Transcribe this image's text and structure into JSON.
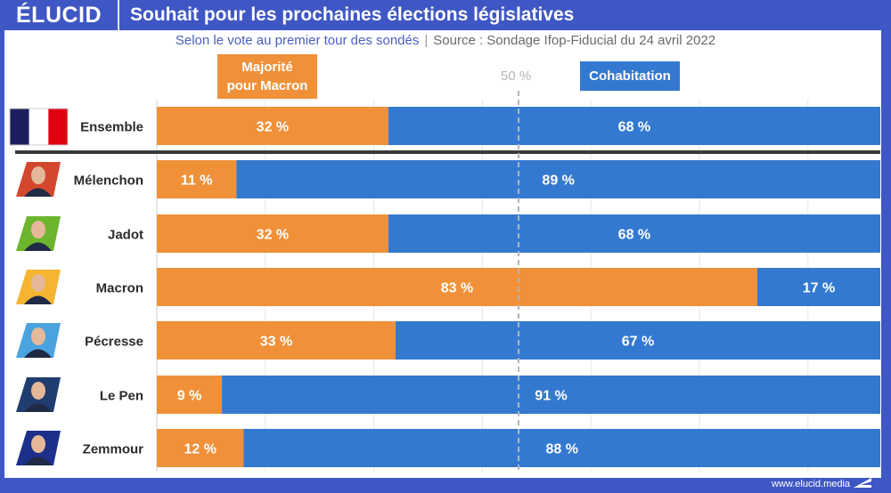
{
  "brand": {
    "logo": "ÉLUCID",
    "url": "www.elucid.media"
  },
  "header": {
    "title": "Souhait pour les prochaines élections législatives"
  },
  "subtitle": {
    "part1": "Selon le vote au premier tour des sondés",
    "separator": "|",
    "part2": "Source : Sondage Ifop-Fiducial du 24 avril 2022"
  },
  "legend": {
    "orange_label_line1": "Majorité",
    "orange_label_line2": "pour Macron",
    "blue_label": "Cohabitation",
    "midline_label": "50 %"
  },
  "colors": {
    "orange": "#f0913a",
    "blue": "#3479d0",
    "frame": "#3f57c4",
    "divider": "#3a3a3a",
    "midline": "#b5b5b5",
    "grid": "#e6e6e6"
  },
  "chart_data": {
    "type": "bar",
    "orientation": "horizontal",
    "stacked": true,
    "title": "Souhait pour les prochaines élections législatives",
    "subtitle": "Selon le vote au premier tour des sondés | Source : Sondage Ifop-Fiducial du 24 avril 2022",
    "categories": [
      "Ensemble",
      "Mélenchon",
      "Jadot",
      "Macron",
      "Pécresse",
      "Le Pen",
      "Zemmour"
    ],
    "icons": [
      "french-flag",
      "portrait-melenchon",
      "portrait-jadot",
      "portrait-macron",
      "portrait-pecresse",
      "portrait-le-pen",
      "portrait-zemmour"
    ],
    "icon_colors": [
      "#e1000f",
      "#d4472f",
      "#6cb52d",
      "#f5b531",
      "#4aa3df",
      "#1f3d6e",
      "#1c2f8a"
    ],
    "series": [
      {
        "name": "Majorité pour Macron",
        "color": "#f0913a",
        "values": [
          32,
          11,
          32,
          83,
          33,
          9,
          12
        ]
      },
      {
        "name": "Cohabitation",
        "color": "#3479d0",
        "values": [
          68,
          89,
          68,
          17,
          67,
          91,
          88
        ]
      }
    ],
    "value_suffix": " %",
    "xlim": [
      0,
      100
    ],
    "reference_line": {
      "value": 50,
      "label": "50 %",
      "style": "dashed"
    },
    "grid": true,
    "legend_position": "top",
    "xlabel": "",
    "ylabel": ""
  }
}
